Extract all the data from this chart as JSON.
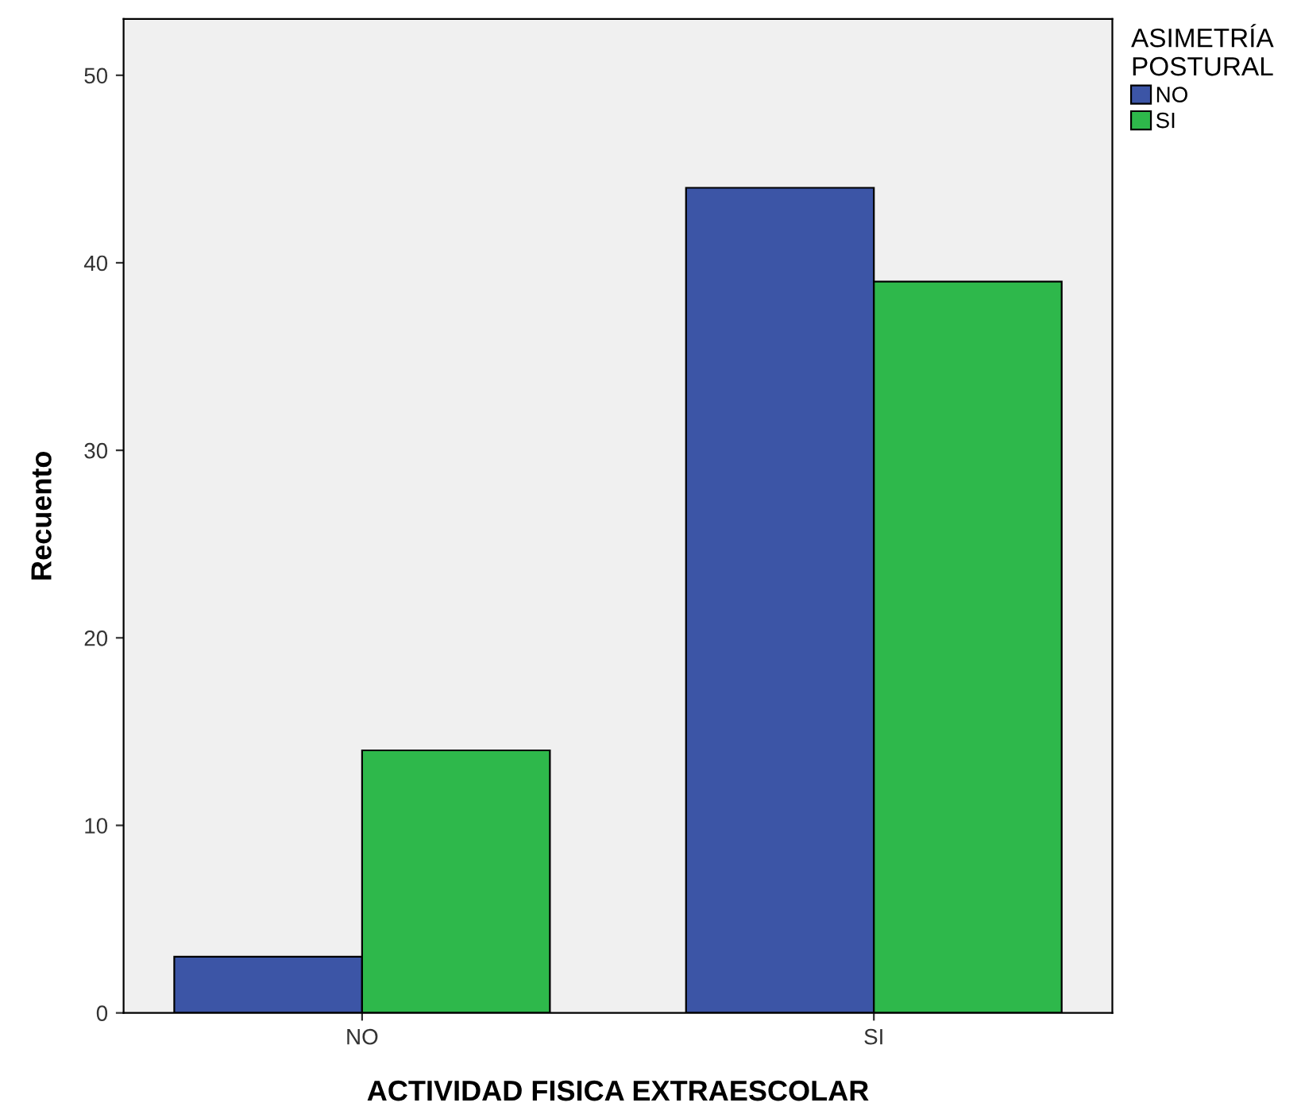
{
  "chart_data": {
    "type": "bar",
    "xlabel": "ACTIVIDAD FISICA EXTRAESCOLAR",
    "ylabel": "Recuento",
    "legend_title": "ASIMETRÍA\nPOSTURAL",
    "categories": [
      "NO",
      "SI"
    ],
    "series": [
      {
        "name": "NO",
        "color": "#3c55a6",
        "values": [
          3,
          44
        ]
      },
      {
        "name": "SI",
        "color": "#2eb84b",
        "values": [
          14,
          39
        ]
      }
    ],
    "ylim": [
      0,
      53
    ],
    "yticks": [
      0,
      10,
      20,
      30,
      40,
      50
    ],
    "grid": false,
    "legend": "top right"
  }
}
